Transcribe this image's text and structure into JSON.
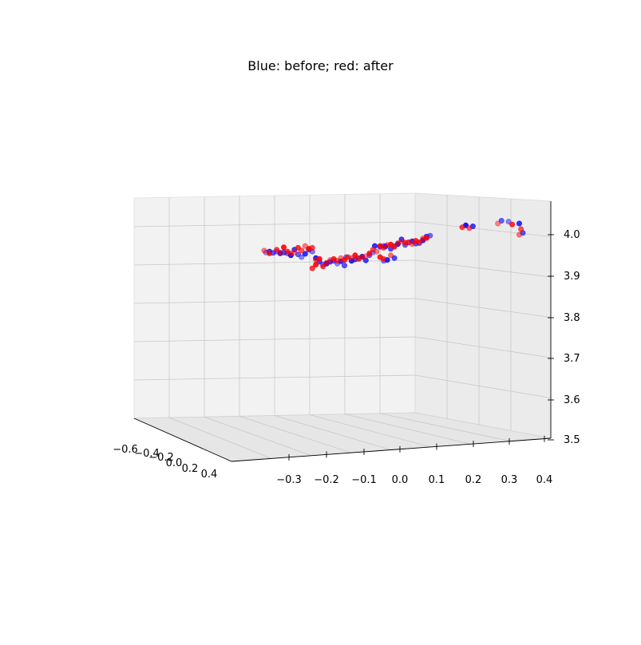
{
  "chart_data": {
    "type": "scatter",
    "projection": "3d",
    "title": "Blue: before; red: after",
    "xlabel": "",
    "ylabel": "",
    "zlabel": "",
    "grid": true,
    "legend": "none",
    "axes": {
      "x": {
        "range": [
          -0.4,
          0.4
        ],
        "ticks": [
          "−0.3",
          "−0.2",
          "−0.1",
          "0.0",
          "0.1",
          "0.2",
          "0.3",
          "0.4"
        ]
      },
      "y": {
        "range": [
          -0.6,
          0.45
        ],
        "ticks": [
          "−0.6",
          "−0.4",
          "−0.2",
          "0.0",
          "0.2",
          "0.4"
        ]
      },
      "z": {
        "range": [
          3.5,
          4.07
        ],
        "ticks": [
          "3.5",
          "3.6",
          "3.7",
          "3.8",
          "3.9",
          "4.0"
        ]
      }
    },
    "series": [
      {
        "color": "#0000ff",
        "points": [
          [
            -0.38,
            3.75
          ],
          [
            -0.37,
            3.76
          ],
          [
            -0.36,
            3.745
          ],
          [
            -0.35,
            3.76
          ],
          [
            -0.34,
            3.74
          ],
          [
            -0.33,
            3.75
          ],
          [
            -0.32,
            3.74
          ],
          [
            -0.31,
            3.72
          ],
          [
            -0.3,
            3.78
          ],
          [
            -0.29,
            3.73
          ],
          [
            -0.28,
            3.7
          ],
          [
            -0.27,
            3.735
          ],
          [
            -0.26,
            3.78
          ],
          [
            -0.25,
            3.76
          ],
          [
            -0.24,
            3.69
          ],
          [
            -0.23,
            3.65
          ],
          [
            -0.22,
            3.62
          ],
          [
            -0.21,
            3.63
          ],
          [
            -0.2,
            3.65
          ],
          [
            -0.19,
            3.66
          ],
          [
            -0.18,
            3.63
          ],
          [
            -0.17,
            3.655
          ],
          [
            -0.16,
            3.61
          ],
          [
            -0.155,
            3.7
          ],
          [
            -0.14,
            3.66
          ],
          [
            -0.13,
            3.675
          ],
          [
            -0.12,
            3.69
          ],
          [
            -0.11,
            3.705
          ],
          [
            -0.1,
            3.665
          ],
          [
            -0.09,
            3.72
          ],
          [
            -0.08,
            3.75
          ],
          [
            -0.075,
            3.82
          ],
          [
            -0.06,
            3.81
          ],
          [
            -0.05,
            3.82
          ],
          [
            -0.045,
            3.815
          ],
          [
            -0.03,
            3.79
          ],
          [
            -0.02,
            3.82
          ],
          [
            -0.01,
            3.84
          ],
          [
            0.0,
            3.89
          ],
          [
            0.01,
            3.83
          ],
          [
            0.02,
            3.855
          ],
          [
            0.03,
            3.87
          ],
          [
            0.04,
            3.845
          ],
          [
            0.05,
            3.85
          ],
          [
            0.06,
            3.88
          ],
          [
            0.07,
            3.92
          ],
          [
            0.08,
            3.93
          ],
          [
            0.18,
            4.04
          ],
          [
            0.2,
            4.03
          ],
          [
            0.28,
            4.09
          ],
          [
            0.3,
            4.08
          ],
          [
            0.33,
            4.06
          ],
          [
            0.34,
            3.96
          ],
          [
            -0.05,
            3.66
          ],
          [
            -0.04,
            3.67
          ],
          [
            -0.02,
            3.69
          ]
        ]
      },
      {
        "color": "#ff0000",
        "points": [
          [
            -0.385,
            3.77
          ],
          [
            -0.37,
            3.74
          ],
          [
            -0.35,
            3.78
          ],
          [
            -0.34,
            3.75
          ],
          [
            -0.33,
            3.805
          ],
          [
            -0.32,
            3.76
          ],
          [
            -0.31,
            3.74
          ],
          [
            -0.3,
            3.75
          ],
          [
            -0.29,
            3.8
          ],
          [
            -0.28,
            3.77
          ],
          [
            -0.27,
            3.82
          ],
          [
            -0.26,
            3.79
          ],
          [
            -0.25,
            3.8
          ],
          [
            -0.24,
            3.67
          ],
          [
            -0.23,
            3.68
          ],
          [
            -0.22,
            3.6
          ],
          [
            -0.21,
            3.64
          ],
          [
            -0.2,
            3.67
          ],
          [
            -0.19,
            3.68
          ],
          [
            -0.18,
            3.66
          ],
          [
            -0.17,
            3.69
          ],
          [
            -0.16,
            3.67
          ],
          [
            -0.15,
            3.7
          ],
          [
            -0.14,
            3.69
          ],
          [
            -0.13,
            3.72
          ],
          [
            -0.12,
            3.68
          ],
          [
            -0.11,
            3.7
          ],
          [
            -0.1,
            3.71
          ],
          [
            -0.09,
            3.74
          ],
          [
            -0.08,
            3.78
          ],
          [
            -0.07,
            3.76
          ],
          [
            -0.06,
            3.82
          ],
          [
            -0.05,
            3.8
          ],
          [
            -0.04,
            3.83
          ],
          [
            -0.03,
            3.835
          ],
          [
            -0.02,
            3.81
          ],
          [
            -0.01,
            3.85
          ],
          [
            0.0,
            3.87
          ],
          [
            0.01,
            3.855
          ],
          [
            0.02,
            3.86
          ],
          [
            0.03,
            3.84
          ],
          [
            0.04,
            3.875
          ],
          [
            0.05,
            3.86
          ],
          [
            0.06,
            3.9
          ],
          [
            0.07,
            3.905
          ],
          [
            0.17,
            4.02
          ],
          [
            0.19,
            4.01
          ],
          [
            0.27,
            4.06
          ],
          [
            0.31,
            4.05
          ],
          [
            0.335,
            4.0
          ],
          [
            0.33,
            3.94
          ],
          [
            -0.06,
            3.7
          ],
          [
            -0.05,
            3.68
          ],
          [
            -0.03,
            3.72
          ],
          [
            -0.24,
            3.62
          ],
          [
            -0.25,
            3.58
          ]
        ]
      }
    ]
  }
}
